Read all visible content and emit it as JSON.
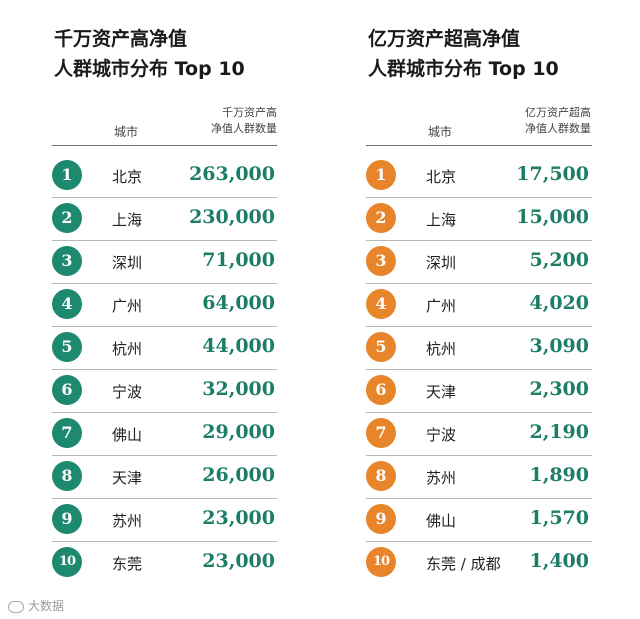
{
  "left": {
    "title_line1": "千万资产高净值",
    "title_line2": "人群城市分布 Top 10",
    "col_city": "城市",
    "col_count_line1": "千万资产高",
    "col_count_line2": "净值人群数量",
    "badge_color": "#1d8a6f",
    "rows": [
      {
        "rank": "1",
        "city": "北京",
        "value": "263,000"
      },
      {
        "rank": "2",
        "city": "上海",
        "value": "230,000"
      },
      {
        "rank": "3",
        "city": "深圳",
        "value": "71,000"
      },
      {
        "rank": "4",
        "city": "广州",
        "value": "64,000"
      },
      {
        "rank": "5",
        "city": "杭州",
        "value": "44,000"
      },
      {
        "rank": "6",
        "city": "宁波",
        "value": "32,000"
      },
      {
        "rank": "7",
        "city": "佛山",
        "value": "29,000"
      },
      {
        "rank": "8",
        "city": "天津",
        "value": "26,000"
      },
      {
        "rank": "9",
        "city": "苏州",
        "value": "23,000"
      },
      {
        "rank": "10",
        "city": "东莞",
        "value": "23,000"
      }
    ]
  },
  "right": {
    "title_line1": "亿万资产超高净值",
    "title_line2": "人群城市分布 Top 10",
    "col_city": "城市",
    "col_count_line1": "亿万资产超高",
    "col_count_line2": "净值人群数量",
    "badge_color": "#e8852a",
    "rows": [
      {
        "rank": "1",
        "city": "北京",
        "value": "17,500"
      },
      {
        "rank": "2",
        "city": "上海",
        "value": "15,000"
      },
      {
        "rank": "3",
        "city": "深圳",
        "value": "5,200"
      },
      {
        "rank": "4",
        "city": "广州",
        "value": "4,020"
      },
      {
        "rank": "5",
        "city": "杭州",
        "value": "3,090"
      },
      {
        "rank": "6",
        "city": "天津",
        "value": "2,300"
      },
      {
        "rank": "7",
        "city": "宁波",
        "value": "2,190"
      },
      {
        "rank": "8",
        "city": "苏州",
        "value": "1,890"
      },
      {
        "rank": "9",
        "city": "佛山",
        "value": "1,570"
      },
      {
        "rank": "10",
        "city": "东莞 / 成都",
        "value": "1,400"
      }
    ]
  },
  "watermark": "大数据"
}
